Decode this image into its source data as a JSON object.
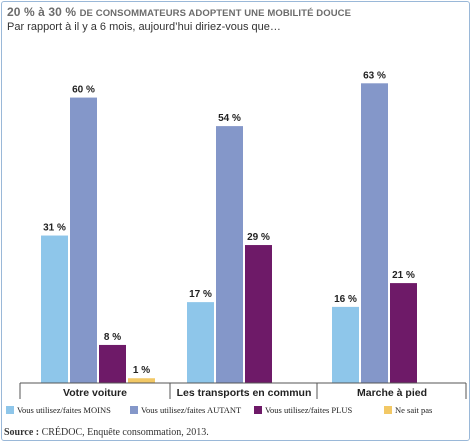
{
  "header": {
    "title_lead": "20 % à 30 %",
    "title_rest": "de consommateurs adoptent une mobilité douce",
    "subtitle": "Par rapport à il y a 6 mois, aujourd’hui diriez-vous que…"
  },
  "source": {
    "label": "Source :",
    "text": " CRÉDOC, Enquête consommation, 2013."
  },
  "chart_data": {
    "type": "bar",
    "categories": [
      "Votre voiture",
      "Les transports en commun",
      "Marche à pied"
    ],
    "series": [
      {
        "name": "Vous utilisez/faites MOINS",
        "color": "#8ec6ea",
        "values": [
          31,
          17,
          16
        ]
      },
      {
        "name": "Vous utilisez/faites AUTANT",
        "color": "#8497c9",
        "values": [
          60,
          54,
          63
        ]
      },
      {
        "name": "Vous utilisez/faites PLUS",
        "color": "#6e1a68",
        "values": [
          8,
          29,
          21
        ]
      },
      {
        "name": "Ne sait pas",
        "color": "#f2c865",
        "values": [
          1,
          null,
          null
        ]
      }
    ],
    "value_labels": [
      [
        "31 %",
        "17 %",
        "16 %"
      ],
      [
        "60 %",
        "54 %",
        "63 %"
      ],
      [
        "8 %",
        "29 %",
        "21 %"
      ],
      [
        "1 %",
        "",
        ""
      ]
    ],
    "ylim": [
      0,
      70
    ],
    "grid": false,
    "legend_position": "bottom"
  }
}
